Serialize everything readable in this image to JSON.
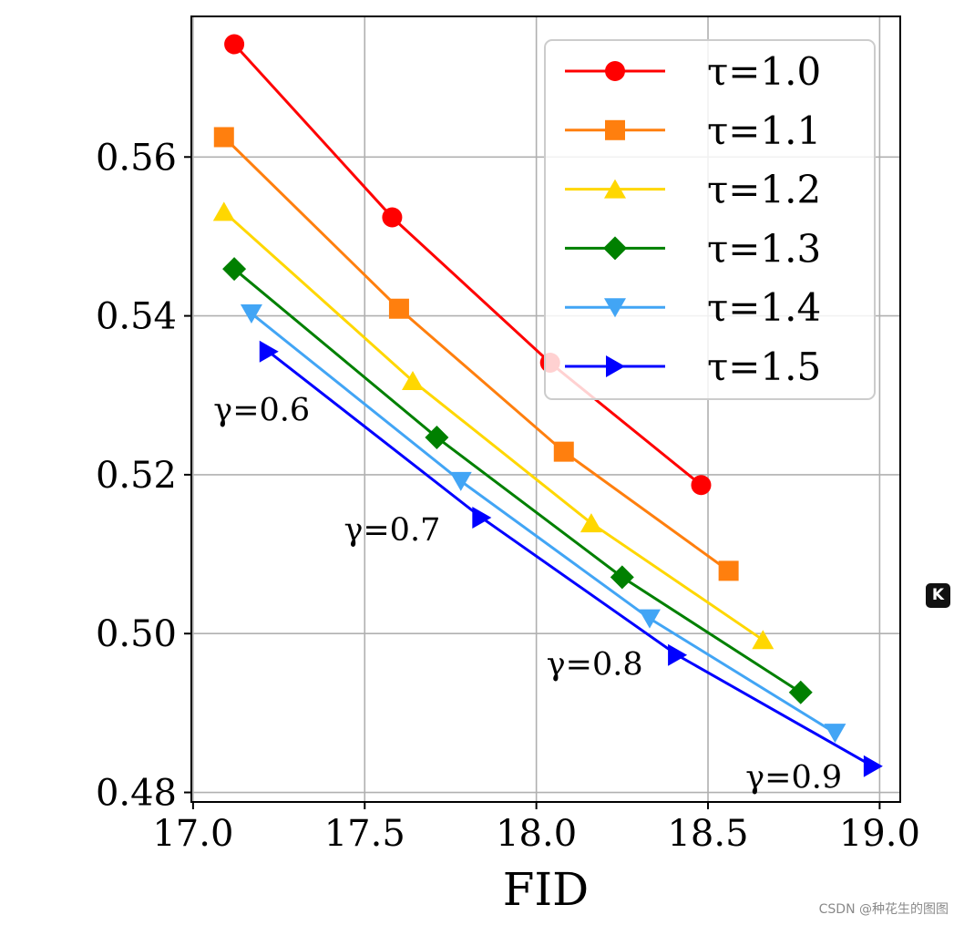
{
  "chart_data": {
    "type": "line",
    "xlabel": "FID",
    "ylabel": "",
    "xlim": [
      16.995,
      19.06
    ],
    "ylim": [
      0.4788,
      0.5777
    ],
    "xticks": [
      17.0,
      17.5,
      18.0,
      18.5,
      19.0
    ],
    "xtick_labels": [
      "17.0",
      "17.5",
      "18.0",
      "18.5",
      "19.0"
    ],
    "yticks": [
      0.48,
      0.5,
      0.52,
      0.54,
      0.56
    ],
    "ytick_labels": [
      "0.48",
      "0.50",
      "0.52",
      "0.54",
      "0.56"
    ],
    "grid": true,
    "legend_position": "upper-right",
    "series": [
      {
        "name": "τ=1.0",
        "color": "#ff0000",
        "marker": "circle",
        "x": [
          17.12,
          17.58,
          18.04,
          18.48
        ],
        "y": [
          0.5742,
          0.5524,
          0.5341,
          0.5187
        ]
      },
      {
        "name": "τ=1.1",
        "color": "#ff7f0e",
        "marker": "square",
        "x": [
          17.09,
          17.6,
          18.08,
          18.56
        ],
        "y": [
          0.5625,
          0.5409,
          0.5229,
          0.5079
        ]
      },
      {
        "name": "τ=1.2",
        "color": "#ffd700",
        "marker": "triangle-up",
        "x": [
          17.09,
          17.64,
          18.16,
          18.66
        ],
        "y": [
          0.5531,
          0.5318,
          0.5139,
          0.4992
        ]
      },
      {
        "name": "τ=1.3",
        "color": "#008000",
        "marker": "diamond",
        "x": [
          17.12,
          17.71,
          18.25,
          18.77
        ],
        "y": [
          0.5459,
          0.5247,
          0.5071,
          0.4926
        ]
      },
      {
        "name": "τ=1.4",
        "color": "#42a5f5",
        "marker": "triangle-down",
        "x": [
          17.17,
          17.78,
          18.33,
          18.87
        ],
        "y": [
          0.5403,
          0.5192,
          0.5019,
          0.4875
        ]
      },
      {
        "name": "τ=1.5",
        "color": "#0000ff",
        "marker": "triangle-right",
        "x": [
          17.22,
          17.84,
          18.41,
          18.98
        ],
        "y": [
          0.5355,
          0.5146,
          0.4973,
          0.4833
        ]
      }
    ],
    "annotations": [
      {
        "text": "γ=0.6",
        "x": 17.2,
        "y": 0.5268
      },
      {
        "text": "γ=0.7",
        "x": 17.58,
        "y": 0.5117
      },
      {
        "text": "γ=0.8",
        "x": 18.17,
        "y": 0.4948
      },
      {
        "text": "γ=0.9",
        "x": 18.75,
        "y": 0.4806
      }
    ]
  },
  "badge": {
    "label": "K"
  },
  "watermark": "CSDN @种花生的图图"
}
